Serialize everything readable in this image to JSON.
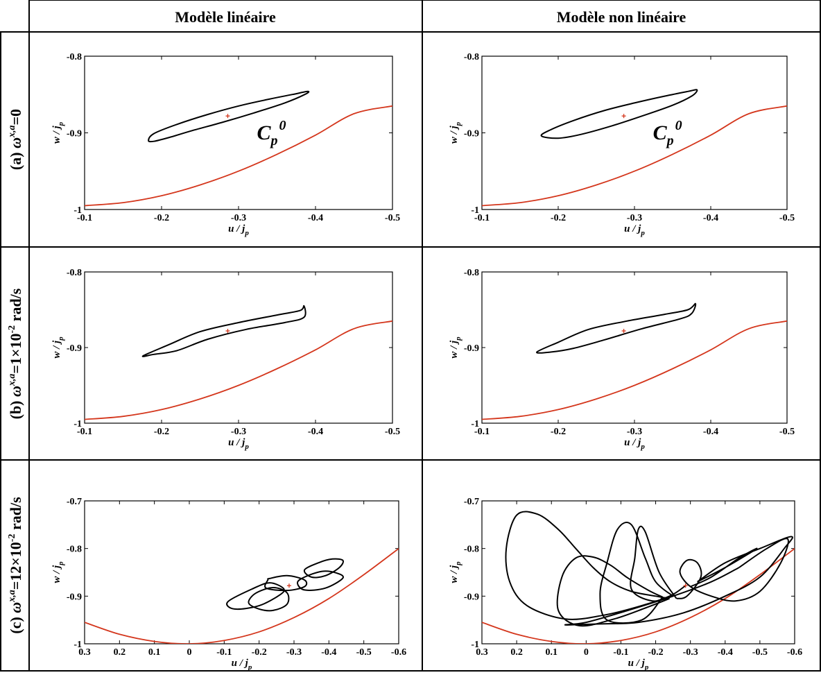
{
  "column_headers": [
    "Modèle linéaire",
    "Modèle non linéaire"
  ],
  "row_labels": [
    {
      "prefix": "(a) ",
      "omega": "ω",
      "sup": "x,a",
      "value": "=0",
      "exp": "",
      "unit": ""
    },
    {
      "prefix": "(b) ",
      "omega": "ω",
      "sup": "x,a",
      "value": "=1×10",
      "exp": "-2",
      "unit": " rad/s"
    },
    {
      "prefix": "(c) ",
      "omega": "ω",
      "sup": "x,a",
      "value": "=12×10",
      "exp": "-2",
      "unit": " rad/s"
    }
  ],
  "axis_labels": {
    "x_main": "u / j",
    "x_sub": "p",
    "y_main": "w / j",
    "y_sub": "p"
  },
  "annotation": {
    "main": "C",
    "sub": "p",
    "sup": "0"
  },
  "colors": {
    "grid_border": "#000000",
    "trajectory": "#000000",
    "boundary_curve": "#d4361c",
    "center_marker": "#d4361c"
  },
  "chart_data": [
    {
      "id": "a-linear",
      "type": "line",
      "xlim": [
        -0.1,
        -0.5
      ],
      "ylim": [
        -1,
        -0.8
      ],
      "xticks": [
        -0.1,
        -0.2,
        -0.3,
        -0.4,
        -0.5
      ],
      "xtick_labels": [
        "-0.1",
        "-0.2",
        "-0.3",
        "-0.4",
        "-0.5"
      ],
      "yticks": [
        -1,
        -0.9,
        -0.8
      ],
      "ytick_labels": [
        "-1",
        "-0.9",
        "-0.8"
      ],
      "center": [
        -0.286,
        -0.878
      ],
      "annotation": true,
      "boundary": {
        "x": [
          -0.1,
          -0.15,
          -0.2,
          -0.25,
          -0.3,
          -0.35,
          -0.4,
          -0.45,
          -0.5
        ],
        "y": [
          -0.995,
          -0.991,
          -0.982,
          -0.968,
          -0.95,
          -0.928,
          -0.903,
          -0.875,
          -0.865
        ]
      },
      "trajectories": [
        {
          "x": [
            -0.183,
            -0.19,
            -0.22,
            -0.26,
            -0.3,
            -0.34,
            -0.37,
            -0.39,
            -0.386,
            -0.36,
            -0.32,
            -0.28,
            -0.24,
            -0.21,
            -0.19,
            -0.183
          ],
          "y": [
            -0.91,
            -0.901,
            -0.889,
            -0.876,
            -0.865,
            -0.856,
            -0.85,
            -0.846,
            -0.85,
            -0.861,
            -0.874,
            -0.886,
            -0.897,
            -0.906,
            -0.911,
            -0.91
          ]
        }
      ]
    },
    {
      "id": "a-nonlinear",
      "type": "line",
      "xlim": [
        -0.1,
        -0.5
      ],
      "ylim": [
        -1,
        -0.8
      ],
      "xticks": [
        -0.1,
        -0.2,
        -0.3,
        -0.4,
        -0.5
      ],
      "xtick_labels": [
        "-0.1",
        "-0.2",
        "-0.3",
        "-0.4",
        "-0.5"
      ],
      "yticks": [
        -1,
        -0.9,
        -0.8
      ],
      "ytick_labels": [
        "-1",
        "-0.9",
        "-0.8"
      ],
      "center": [
        -0.286,
        -0.878
      ],
      "annotation": true,
      "boundary": {
        "x": [
          -0.1,
          -0.15,
          -0.2,
          -0.25,
          -0.3,
          -0.35,
          -0.4,
          -0.45,
          -0.5
        ],
        "y": [
          -0.995,
          -0.991,
          -0.982,
          -0.968,
          -0.95,
          -0.928,
          -0.903,
          -0.875,
          -0.865
        ]
      },
      "trajectories": [
        {
          "x": [
            -0.178,
            -0.19,
            -0.22,
            -0.26,
            -0.3,
            -0.34,
            -0.37,
            -0.382,
            -0.375,
            -0.35,
            -0.31,
            -0.27,
            -0.23,
            -0.2,
            -0.178
          ],
          "y": [
            -0.904,
            -0.896,
            -0.884,
            -0.871,
            -0.861,
            -0.852,
            -0.846,
            -0.844,
            -0.852,
            -0.864,
            -0.878,
            -0.891,
            -0.902,
            -0.907,
            -0.904
          ]
        }
      ]
    },
    {
      "id": "b-linear",
      "type": "line",
      "xlim": [
        -0.1,
        -0.5
      ],
      "ylim": [
        -1,
        -0.8
      ],
      "xticks": [
        -0.1,
        -0.2,
        -0.3,
        -0.4,
        -0.5
      ],
      "xtick_labels": [
        "-0.1",
        "-0.2",
        "-0.3",
        "-0.4",
        "-0.5"
      ],
      "yticks": [
        -1,
        -0.9,
        -0.8
      ],
      "ytick_labels": [
        "-1",
        "-0.9",
        "-0.8"
      ],
      "center": [
        -0.286,
        -0.878
      ],
      "annotation": false,
      "boundary": {
        "x": [
          -0.1,
          -0.15,
          -0.2,
          -0.25,
          -0.3,
          -0.35,
          -0.4,
          -0.45,
          -0.5
        ],
        "y": [
          -0.995,
          -0.991,
          -0.982,
          -0.968,
          -0.95,
          -0.928,
          -0.903,
          -0.875,
          -0.865
        ]
      },
      "trajectories": [
        {
          "x": [
            -0.176,
            -0.21,
            -0.25,
            -0.3,
            -0.35,
            -0.38,
            -0.385,
            -0.385,
            -0.36,
            -0.31,
            -0.26,
            -0.22,
            -0.19,
            -0.176
          ],
          "y": [
            -0.911,
            -0.896,
            -0.879,
            -0.867,
            -0.857,
            -0.851,
            -0.845,
            -0.86,
            -0.867,
            -0.876,
            -0.889,
            -0.904,
            -0.909,
            -0.911
          ]
        }
      ]
    },
    {
      "id": "b-nonlinear",
      "type": "line",
      "xlim": [
        -0.1,
        -0.5
      ],
      "ylim": [
        -1,
        -0.8
      ],
      "xticks": [
        -0.1,
        -0.2,
        -0.3,
        -0.4,
        -0.5
      ],
      "xtick_labels": [
        "-0.1",
        "-0.2",
        "-0.3",
        "-0.4",
        "-0.5"
      ],
      "yticks": [
        -1,
        -0.9,
        -0.8
      ],
      "ytick_labels": [
        "-1",
        "-0.9",
        "-0.8"
      ],
      "center": [
        -0.286,
        -0.878
      ],
      "annotation": false,
      "boundary": {
        "x": [
          -0.1,
          -0.15,
          -0.2,
          -0.25,
          -0.3,
          -0.35,
          -0.4,
          -0.45,
          -0.5
        ],
        "y": [
          -0.995,
          -0.991,
          -0.982,
          -0.968,
          -0.95,
          -0.928,
          -0.903,
          -0.875,
          -0.865
        ]
      },
      "trajectories": [
        {
          "x": [
            -0.172,
            -0.2,
            -0.24,
            -0.29,
            -0.34,
            -0.37,
            -0.38,
            -0.375,
            -0.36,
            -0.31,
            -0.26,
            -0.22,
            -0.19,
            -0.172
          ],
          "y": [
            -0.906,
            -0.893,
            -0.876,
            -0.865,
            -0.856,
            -0.85,
            -0.842,
            -0.855,
            -0.862,
            -0.875,
            -0.89,
            -0.901,
            -0.906,
            -0.906
          ]
        }
      ]
    },
    {
      "id": "c-linear",
      "type": "line",
      "xlim": [
        0.3,
        -0.6
      ],
      "ylim": [
        -1,
        -0.7
      ],
      "xticks": [
        0.3,
        0.2,
        0.1,
        0,
        -0.1,
        -0.2,
        -0.3,
        -0.4,
        -0.5,
        -0.6
      ],
      "xtick_labels": [
        "0.3",
        "0.2",
        "0.1",
        "0",
        "-0.1",
        "-0.2",
        "-0.3",
        "-0.4",
        "-0.5",
        "-0.6"
      ],
      "yticks": [
        -1,
        -0.9,
        -0.8,
        -0.7
      ],
      "ytick_labels": [
        "-1",
        "-0.9",
        "-0.8",
        "-0.7"
      ],
      "center": [
        -0.286,
        -0.878
      ],
      "annotation": false,
      "boundary": {
        "x": [
          0.3,
          0.2,
          0.1,
          0,
          -0.1,
          -0.2,
          -0.3,
          -0.4,
          -0.5,
          -0.6
        ],
        "y": [
          -0.955,
          -0.98,
          -0.995,
          -1.0,
          -0.993,
          -0.975,
          -0.945,
          -0.905,
          -0.855,
          -0.8
        ]
      },
      "trajectories": [
        {
          "x": [
            -0.11,
            -0.13,
            -0.2,
            -0.26,
            -0.27,
            -0.23,
            -0.18,
            -0.11
          ],
          "y": [
            -0.912,
            -0.927,
            -0.92,
            -0.897,
            -0.884,
            -0.872,
            -0.885,
            -0.912
          ]
        },
        {
          "x": [
            -0.225,
            -0.23,
            -0.28,
            -0.33,
            -0.33,
            -0.28,
            -0.22,
            -0.225
          ],
          "y": [
            -0.866,
            -0.863,
            -0.857,
            -0.866,
            -0.88,
            -0.888,
            -0.883,
            -0.866
          ]
        },
        {
          "x": [
            -0.17,
            -0.2,
            -0.24,
            -0.28,
            -0.28,
            -0.24,
            -0.19,
            -0.17
          ],
          "y": [
            -0.914,
            -0.927,
            -0.93,
            -0.917,
            -0.893,
            -0.882,
            -0.894,
            -0.914
          ]
        },
        {
          "x": [
            -0.31,
            -0.33,
            -0.39,
            -0.44,
            -0.42,
            -0.38,
            -0.33,
            -0.31
          ],
          "y": [
            -0.872,
            -0.887,
            -0.883,
            -0.862,
            -0.851,
            -0.848,
            -0.86,
            -0.872
          ]
        },
        {
          "x": [
            -0.33,
            -0.37,
            -0.41,
            -0.44,
            -0.43,
            -0.39,
            -0.35,
            -0.33
          ],
          "y": [
            -0.845,
            -0.83,
            -0.822,
            -0.825,
            -0.84,
            -0.857,
            -0.86,
            -0.845
          ]
        }
      ]
    },
    {
      "id": "c-nonlinear",
      "type": "line",
      "xlim": [
        0.3,
        -0.6
      ],
      "ylim": [
        -1,
        -0.7
      ],
      "xticks": [
        0.3,
        0.2,
        0.1,
        0,
        -0.1,
        -0.2,
        -0.3,
        -0.4,
        -0.5,
        -0.6
      ],
      "xtick_labels": [
        "0.3",
        "0.2",
        "0.1",
        "0",
        "-0.1",
        "-0.2",
        "-0.3",
        "-0.4",
        "-0.5",
        "-0.6"
      ],
      "yticks": [
        -1,
        -0.9,
        -0.8,
        -0.7
      ],
      "ytick_labels": [
        "-1",
        "-0.9",
        "-0.8",
        "-0.7"
      ],
      "center": [
        -0.286,
        -0.878
      ],
      "annotation": false,
      "boundary": {
        "x": [
          0.3,
          0.2,
          0.1,
          0,
          -0.1,
          -0.2,
          -0.3,
          -0.4,
          -0.5,
          -0.6
        ],
        "y": [
          -0.955,
          -0.98,
          -0.995,
          -1.0,
          -0.993,
          -0.975,
          -0.945,
          -0.905,
          -0.855,
          -0.8
        ]
      },
      "trajectories": [
        {
          "x": [
            -0.286,
            -0.24,
            -0.15,
            -0.05,
            0.06,
            0.17,
            0.22,
            0.23,
            0.2,
            0.14,
            0.08,
            0.03,
            -0.02,
            -0.07,
            -0.13,
            -0.2,
            -0.24
          ],
          "y": [
            -0.878,
            -0.9,
            -0.922,
            -0.94,
            -0.948,
            -0.92,
            -0.87,
            -0.8,
            -0.73,
            -0.728,
            -0.76,
            -0.8,
            -0.84,
            -0.87,
            -0.89,
            -0.9,
            -0.905
          ]
        },
        {
          "x": [
            -0.24,
            -0.17,
            -0.08,
            0.02,
            0.08,
            0.07,
            0.03,
            -0.02,
            -0.07,
            -0.12,
            -0.18,
            -0.22
          ],
          "y": [
            -0.905,
            -0.925,
            -0.948,
            -0.962,
            -0.93,
            -0.86,
            -0.82,
            -0.818,
            -0.835,
            -0.862,
            -0.888,
            -0.902
          ]
        },
        {
          "x": [
            -0.22,
            -0.16,
            -0.06,
            -0.04,
            -0.06,
            -0.09,
            -0.13,
            -0.17,
            -0.2,
            -0.25
          ],
          "y": [
            -0.902,
            -0.95,
            -0.95,
            -0.895,
            -0.83,
            -0.76,
            -0.75,
            -0.82,
            -0.87,
            -0.9
          ]
        },
        {
          "x": [
            -0.25,
            -0.19,
            -0.13,
            -0.14,
            -0.15,
            -0.17,
            -0.21,
            -0.26
          ],
          "y": [
            -0.9,
            -0.91,
            -0.885,
            -0.82,
            -0.76,
            -0.765,
            -0.85,
            -0.905
          ]
        },
        {
          "x": [
            -0.26,
            -0.29,
            -0.33,
            -0.32,
            -0.29,
            -0.27,
            -0.3,
            -0.36,
            -0.43,
            -0.5,
            -0.56,
            -0.58,
            -0.52,
            -0.44
          ],
          "y": [
            -0.905,
            -0.9,
            -0.86,
            -0.83,
            -0.825,
            -0.85,
            -0.88,
            -0.9,
            -0.91,
            -0.89,
            -0.83,
            -0.78,
            -0.8,
            -0.84
          ]
        },
        {
          "x": [
            -0.44,
            -0.36,
            -0.25,
            -0.12,
            0.0,
            0.06,
            0.03,
            -0.05,
            -0.15,
            -0.28,
            -0.4,
            -0.5,
            -0.57,
            -0.59,
            -0.5,
            -0.4,
            -0.32
          ],
          "y": [
            -0.84,
            -0.87,
            -0.9,
            -0.93,
            -0.955,
            -0.96,
            -0.96,
            -0.958,
            -0.955,
            -0.935,
            -0.9,
            -0.86,
            -0.8,
            -0.775,
            -0.8,
            -0.83,
            -0.87
          ]
        },
        {
          "x": [
            -0.32,
            -0.4,
            -0.47,
            -0.49,
            -0.44,
            -0.36,
            -0.3
          ],
          "y": [
            -0.87,
            -0.84,
            -0.81,
            -0.8,
            -0.82,
            -0.86,
            -0.88
          ]
        }
      ]
    }
  ]
}
